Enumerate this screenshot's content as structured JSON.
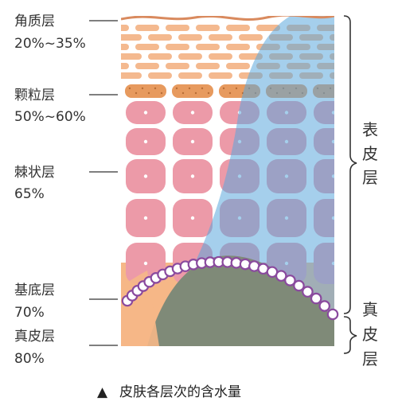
{
  "layers": [
    {
      "name": "角质层",
      "water": "20%~35%"
    },
    {
      "name": "颗粒层",
      "water": "50%~60%"
    },
    {
      "name": "棘状层",
      "water": "65%"
    },
    {
      "name": "基底层",
      "water": "70%"
    },
    {
      "name": "真皮层",
      "water": "80%"
    }
  ],
  "brackets": {
    "epidermis": [
      "表",
      "皮",
      "层"
    ],
    "dermis": [
      "真",
      "皮",
      "层"
    ]
  },
  "caption": {
    "marker": "▲",
    "text": "皮肤各层次的含水量"
  },
  "colors": {
    "stratum_corneum": "#f4b98f",
    "granular": "#e79a5e",
    "spinous_cell": "#ec9aa8",
    "water_blue": "#6fb3e0",
    "dermis_orange": "#f6b787",
    "dermis_green": "#7f8a78",
    "basal_ring": "#8a4a9e"
  }
}
